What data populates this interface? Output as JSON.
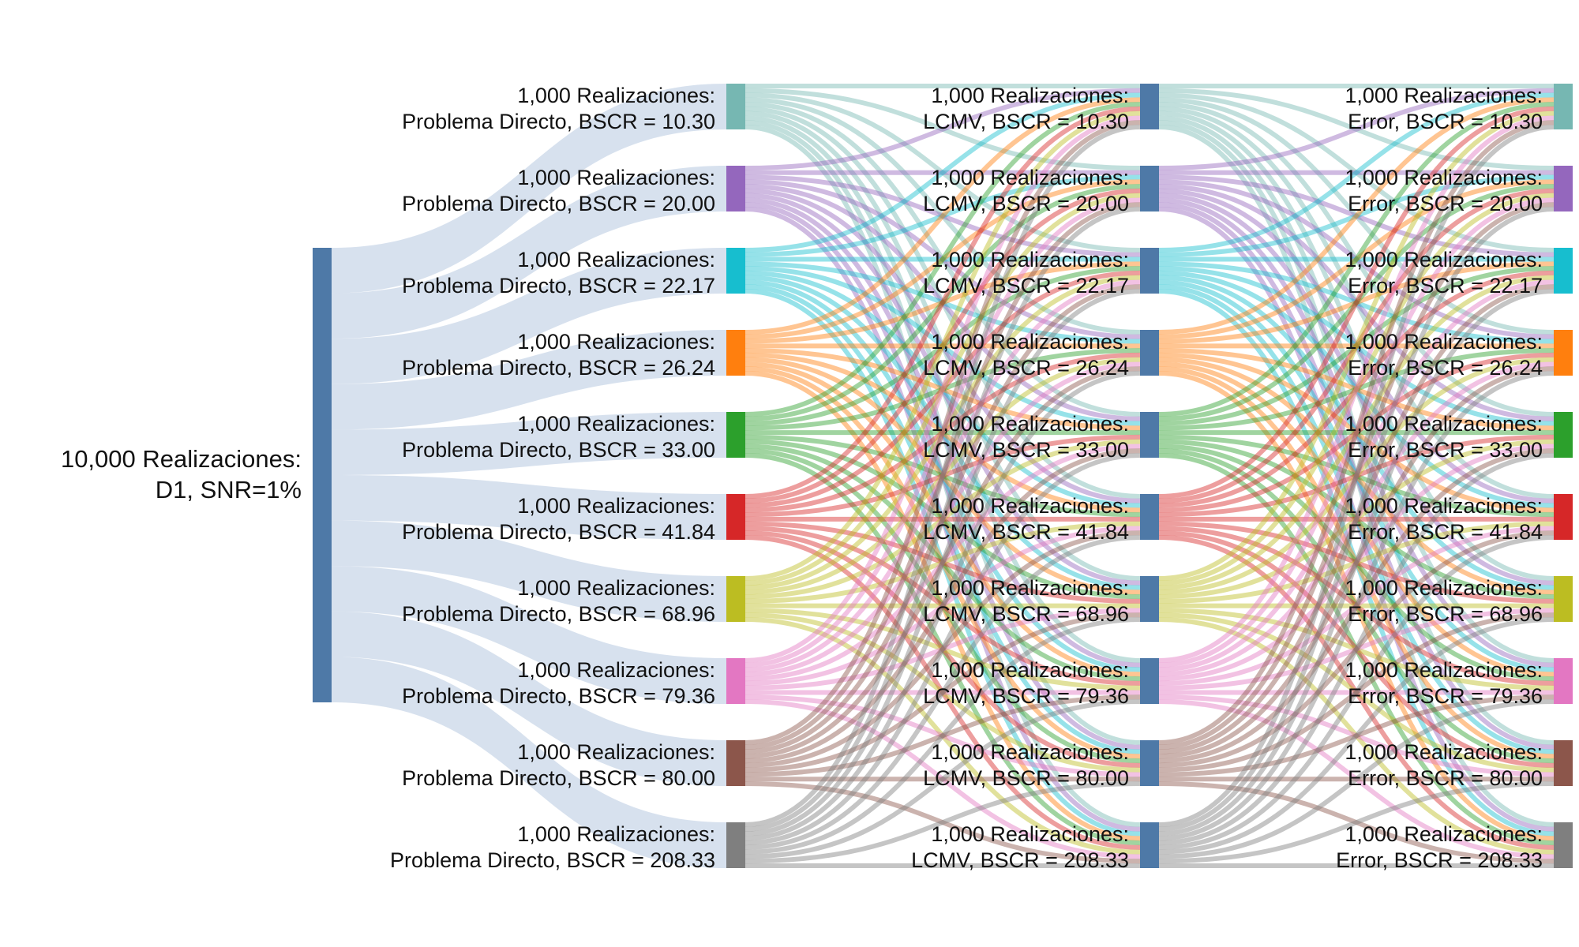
{
  "root": {
    "line1": "10,000 Realizaciones:",
    "line2": "D1, SNR=1%",
    "color": "#4e79a7"
  },
  "levels": [
    {
      "color": "#76b7b2",
      "a": "1,000 Realizaciones:",
      "b1": "Problema Directo, BSCR = 10.30",
      "b2": "LCMV, BSCR = 10.30",
      "b3": "Error, BSCR = 10.30"
    },
    {
      "color": "#9467bd",
      "a": "1,000 Realizaciones:",
      "b1": "Problema Directo, BSCR = 20.00",
      "b2": "LCMV, BSCR = 20.00",
      "b3": "Error, BSCR = 20.00"
    },
    {
      "color": "#17becf",
      "a": "1,000 Realizaciones:",
      "b1": "Problema Directo, BSCR = 22.17",
      "b2": "LCMV, BSCR = 22.17",
      "b3": "Error, BSCR = 22.17"
    },
    {
      "color": "#ff7f0e",
      "a": "1,000 Realizaciones:",
      "b1": "Problema Directo, BSCR = 26.24",
      "b2": "LCMV, BSCR = 26.24",
      "b3": "Error, BSCR = 26.24"
    },
    {
      "color": "#2ca02c",
      "a": "1,000 Realizaciones:",
      "b1": "Problema Directo, BSCR = 33.00",
      "b2": "LCMV, BSCR = 33.00",
      "b3": "Error, BSCR = 33.00"
    },
    {
      "color": "#d62728",
      "a": "1,000 Realizaciones:",
      "b1": "Problema Directo, BSCR = 41.84",
      "b2": "LCMV, BSCR = 41.84",
      "b3": "Error, BSCR = 41.84"
    },
    {
      "color": "#bcbd22",
      "a": "1,000 Realizaciones:",
      "b1": "Problema Directo, BSCR = 68.96",
      "b2": "LCMV, BSCR = 68.96",
      "b3": "Error, BSCR = 68.96"
    },
    {
      "color": "#e377c2",
      "a": "1,000 Realizaciones:",
      "b1": "Problema Directo, BSCR = 79.36",
      "b2": "LCMV, BSCR = 79.36",
      "b3": "Error, BSCR = 79.36"
    },
    {
      "color": "#8c564b",
      "a": "1,000 Realizaciones:",
      "b1": "Problema Directo, BSCR = 80.00",
      "b2": "LCMV, BSCR = 80.00",
      "b3": "Error, BSCR = 80.00"
    },
    {
      "color": "#7f7f7f",
      "a": "1,000 Realizaciones:",
      "b1": "Problema Directo, BSCR = 208.33",
      "b2": "LCMV, BSCR = 208.33",
      "b3": "Error, BSCR = 208.33"
    }
  ],
  "lcmv_node_color": "#4e79a7",
  "root_link_color": "#b0c4de"
}
